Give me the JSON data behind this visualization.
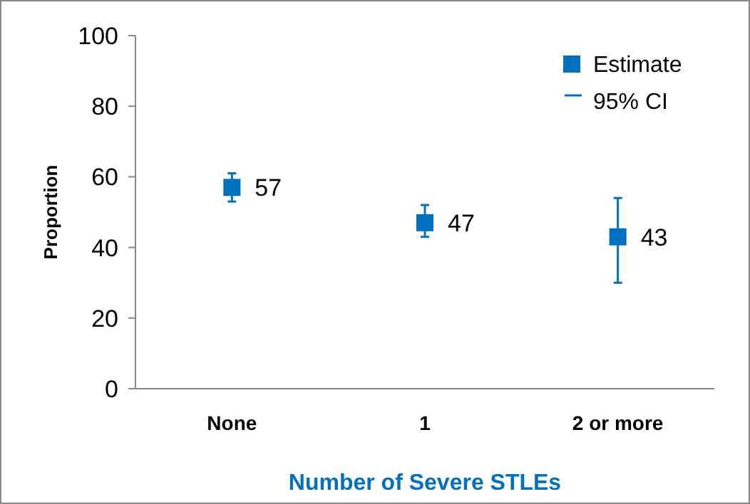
{
  "chart_data": {
    "type": "scatter",
    "xlabel": "Number of Severe STLEs",
    "ylabel": "Proportion",
    "categories": [
      "None",
      "1",
      "2 or more"
    ],
    "series": [
      {
        "name": "Estimate",
        "color": "#0070c0",
        "values": [
          57,
          47,
          43
        ],
        "errors": [
          [
            53,
            61
          ],
          [
            43,
            52
          ],
          [
            30,
            54
          ]
        ]
      }
    ],
    "ylim": [
      0,
      100
    ],
    "yticks": [
      0,
      20,
      40,
      60,
      80,
      100
    ],
    "grid": false,
    "legend": "top right",
    "marker": "square",
    "data_labels": true,
    "annotations": [
      "95% CI"
    ]
  }
}
